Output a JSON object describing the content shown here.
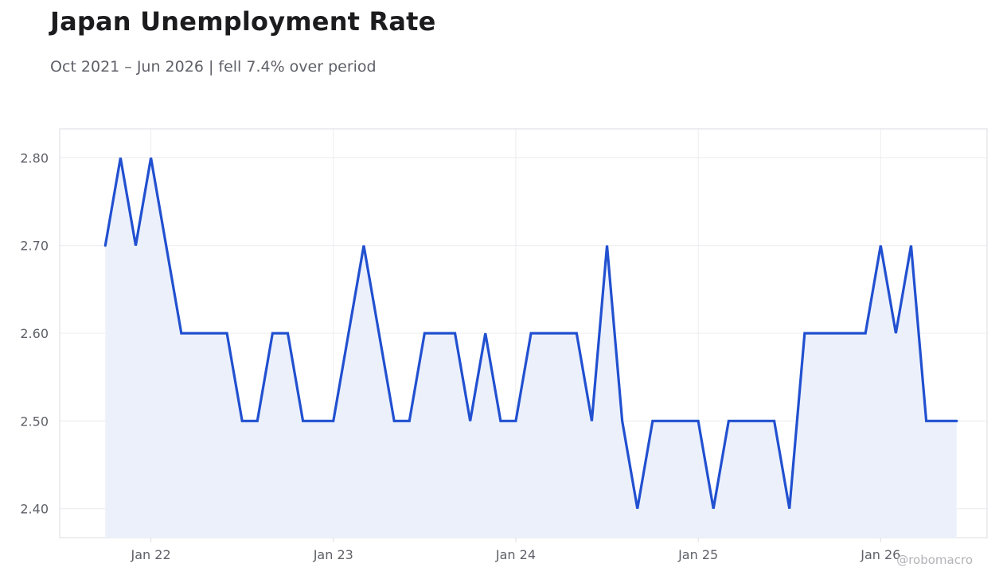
{
  "title": "Japan Unemployment Rate",
  "subtitle": "Oct 2021 – Jun 2026 | fell 7.4% over period",
  "watermark": "@robomacro",
  "colors": {
    "line": "#2150d0",
    "fill": "#ebf0fb",
    "grid": "#ececf0",
    "frame": "#dedee3",
    "text": "#5f6068"
  },
  "chart_data": {
    "type": "area",
    "title": "Japan Unemployment Rate",
    "subtitle": "Oct 2021 – Jun 2026 | fell 7.4% over period",
    "xlabel": "",
    "ylabel": "",
    "x_start": "2021-10",
    "x_end": "2026-06",
    "xlim": [
      "2021-07",
      "2026-08"
    ],
    "ylim": [
      2.367,
      2.833
    ],
    "x_ticks": [
      {
        "date": "2022-01",
        "label": "Jan 22"
      },
      {
        "date": "2023-01",
        "label": "Jan 23"
      },
      {
        "date": "2024-01",
        "label": "Jan 24"
      },
      {
        "date": "2025-01",
        "label": "Jan 25"
      },
      {
        "date": "2026-01",
        "label": "Jan 26"
      }
    ],
    "y_ticks": [
      {
        "value": 2.4,
        "label": "2.40"
      },
      {
        "value": 2.5,
        "label": "2.50"
      },
      {
        "value": 2.6,
        "label": "2.60"
      },
      {
        "value": 2.7,
        "label": "2.70"
      },
      {
        "value": 2.8,
        "label": "2.80"
      }
    ],
    "grid": true,
    "legend": "none",
    "series": [
      {
        "x": [
          "2021-10",
          "2021-11",
          "2021-12",
          "2022-01",
          "2022-02",
          "2022-03",
          "2022-04",
          "2022-05",
          "2022-06",
          "2022-07",
          "2022-08",
          "2022-09",
          "2022-10",
          "2022-11",
          "2022-12",
          "2023-01",
          "2023-02",
          "2023-03",
          "2023-04",
          "2023-05",
          "2023-06",
          "2023-07",
          "2023-08",
          "2023-09",
          "2023-10",
          "2023-11",
          "2023-12",
          "2024-01",
          "2024-02",
          "2024-03",
          "2024-04",
          "2024-05",
          "2024-06",
          "2024-07",
          "2024-08",
          "2024-09",
          "2024-10",
          "2024-11",
          "2024-12",
          "2025-01",
          "2025-02",
          "2025-03",
          "2025-04",
          "2025-05",
          "2025-06",
          "2025-07",
          "2025-08",
          "2025-09",
          "2025-10",
          "2025-11",
          "2025-12",
          "2026-01",
          "2026-02",
          "2026-03",
          "2026-04",
          "2026-05",
          "2026-06"
        ],
        "values": [
          2.7,
          2.8,
          2.7,
          2.8,
          2.7,
          2.6,
          2.6,
          2.6,
          2.6,
          2.5,
          2.5,
          2.6,
          2.6,
          2.5,
          2.5,
          2.5,
          2.6,
          2.7,
          2.6,
          2.5,
          2.5,
          2.6,
          2.6,
          2.6,
          2.5,
          2.6,
          2.5,
          2.5,
          2.6,
          2.6,
          2.6,
          2.6,
          2.5,
          2.7,
          2.5,
          2.4,
          2.5,
          2.5,
          2.5,
          2.5,
          2.4,
          2.5,
          2.5,
          2.5,
          2.5,
          2.4,
          2.6,
          2.6,
          2.6,
          2.6,
          2.6,
          2.7,
          2.6,
          2.7,
          2.5,
          2.5,
          2.5
        ]
      }
    ]
  }
}
